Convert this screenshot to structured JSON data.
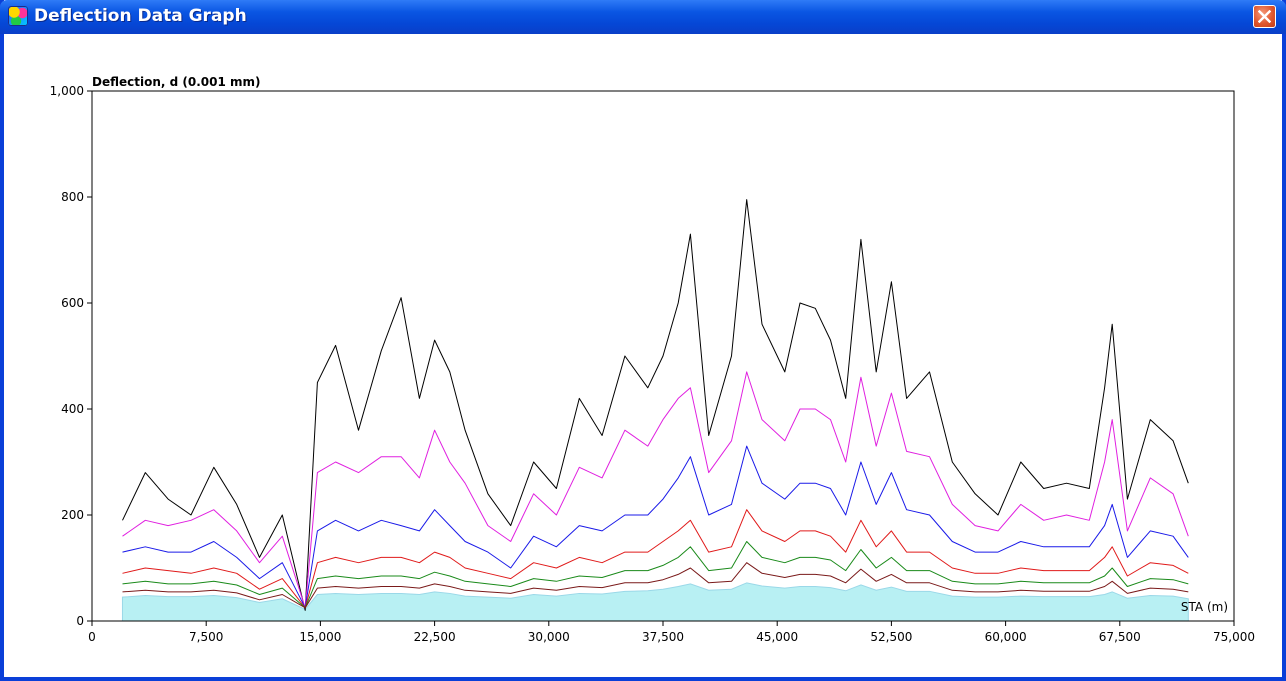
{
  "window": {
    "title": "Deflection Data Graph",
    "icons": {
      "app": "app-icon",
      "close": "close-icon"
    }
  },
  "chart_data": {
    "type": "line",
    "ylabel": "Deflection, d (0.001 mm)",
    "xlabel": "STA (m)",
    "xlim": [
      0,
      75000
    ],
    "ylim": [
      0,
      1000
    ],
    "x_ticks": [
      "0",
      "7,500",
      "15,000",
      "22,500",
      "30,000",
      "37,500",
      "45,000",
      "52,500",
      "60,000",
      "67,500",
      "75,000"
    ],
    "y_ticks": [
      "0",
      "200",
      "400",
      "600",
      "800",
      "1,000"
    ],
    "grid": false,
    "legend": "none",
    "baseline_fill_color": "#b8f0f3",
    "x": [
      2000,
      3500,
      5000,
      6500,
      8000,
      9500,
      11000,
      12500,
      14000,
      14800,
      16000,
      17500,
      19000,
      20300,
      21500,
      22500,
      23500,
      24500,
      26000,
      27500,
      29000,
      30500,
      32000,
      33500,
      35000,
      36500,
      37500,
      38500,
      39300,
      40500,
      42000,
      43000,
      44000,
      45500,
      46500,
      47500,
      48500,
      49500,
      50500,
      51500,
      52500,
      53500,
      55000,
      56500,
      58000,
      59500,
      61000,
      62500,
      64000,
      65500,
      66500,
      67000,
      68000,
      69500,
      71000,
      72000
    ],
    "series": [
      {
        "color": "#000000",
        "values": [
          190,
          280,
          230,
          200,
          290,
          220,
          120,
          200,
          20,
          450,
          520,
          360,
          510,
          610,
          420,
          530,
          470,
          360,
          240,
          180,
          300,
          250,
          420,
          350,
          500,
          440,
          500,
          600,
          730,
          350,
          500,
          795,
          560,
          470,
          600,
          590,
          530,
          420,
          720,
          470,
          640,
          420,
          470,
          300,
          240,
          200,
          300,
          250,
          260,
          250,
          440,
          560,
          230,
          380,
          340,
          260
        ]
      },
      {
        "color": "#e020e0",
        "values": [
          160,
          190,
          180,
          190,
          210,
          170,
          110,
          160,
          25,
          280,
          300,
          280,
          310,
          310,
          270,
          360,
          300,
          260,
          180,
          150,
          240,
          200,
          290,
          270,
          360,
          330,
          380,
          420,
          440,
          280,
          340,
          470,
          380,
          340,
          400,
          400,
          380,
          300,
          460,
          330,
          430,
          320,
          310,
          220,
          180,
          170,
          220,
          190,
          200,
          190,
          300,
          380,
          170,
          270,
          240,
          160
        ]
      },
      {
        "color": "#1a1ae8",
        "values": [
          130,
          140,
          130,
          130,
          150,
          120,
          80,
          110,
          25,
          170,
          190,
          170,
          190,
          180,
          170,
          210,
          180,
          150,
          130,
          100,
          160,
          140,
          180,
          170,
          200,
          200,
          230,
          270,
          310,
          200,
          220,
          330,
          260,
          230,
          260,
          260,
          250,
          200,
          300,
          220,
          280,
          210,
          200,
          150,
          130,
          130,
          150,
          140,
          140,
          140,
          180,
          220,
          120,
          170,
          160,
          120
        ]
      },
      {
        "color": "#e01a1a",
        "values": [
          90,
          100,
          95,
          90,
          100,
          90,
          60,
          80,
          25,
          110,
          120,
          110,
          120,
          120,
          110,
          130,
          120,
          100,
          90,
          80,
          110,
          100,
          120,
          110,
          130,
          130,
          150,
          170,
          190,
          130,
          140,
          210,
          170,
          150,
          170,
          170,
          160,
          130,
          190,
          140,
          170,
          130,
          130,
          100,
          90,
          90,
          100,
          95,
          95,
          95,
          120,
          140,
          85,
          110,
          105,
          90
        ]
      },
      {
        "color": "#1a8a1a",
        "values": [
          70,
          75,
          70,
          70,
          75,
          68,
          50,
          62,
          25,
          80,
          85,
          80,
          85,
          85,
          80,
          92,
          85,
          75,
          70,
          65,
          80,
          75,
          85,
          82,
          95,
          95,
          105,
          120,
          140,
          95,
          100,
          150,
          120,
          110,
          120,
          120,
          115,
          95,
          135,
          100,
          120,
          95,
          95,
          75,
          70,
          70,
          75,
          72,
          72,
          72,
          85,
          100,
          65,
          80,
          78,
          70
        ]
      },
      {
        "color": "#7a1a1a",
        "values": [
          55,
          58,
          55,
          55,
          58,
          53,
          40,
          50,
          25,
          62,
          65,
          62,
          65,
          65,
          62,
          70,
          65,
          58,
          55,
          52,
          62,
          58,
          65,
          63,
          72,
          72,
          78,
          88,
          100,
          72,
          75,
          110,
          90,
          82,
          88,
          88,
          85,
          72,
          98,
          75,
          88,
          72,
          72,
          58,
          55,
          55,
          58,
          56,
          56,
          56,
          65,
          75,
          52,
          62,
          60,
          55
        ]
      }
    ],
    "baseline_fill": [
      45,
      48,
      46,
      46,
      48,
      44,
      35,
      42,
      22,
      50,
      52,
      50,
      52,
      52,
      50,
      55,
      52,
      47,
      45,
      43,
      50,
      47,
      52,
      51,
      56,
      57,
      60,
      65,
      70,
      58,
      60,
      72,
      66,
      62,
      65,
      65,
      63,
      57,
      68,
      58,
      64,
      56,
      56,
      47,
      45,
      45,
      47,
      46,
      46,
      46,
      50,
      55,
      43,
      48,
      47,
      42
    ]
  }
}
